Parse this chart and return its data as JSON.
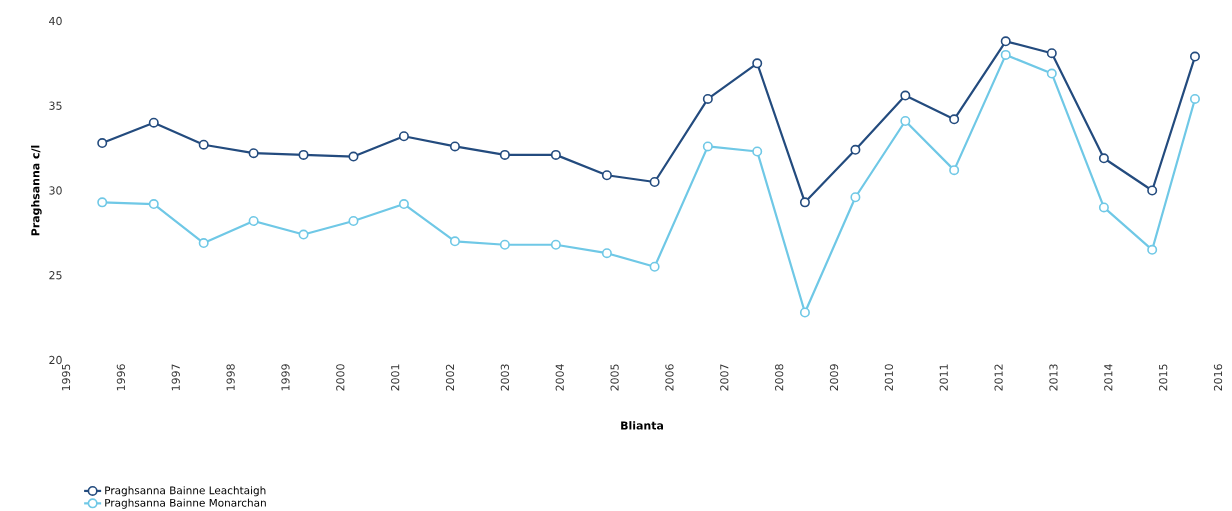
{
  "chart_data": {
    "type": "line",
    "xlabel": "Blianta",
    "ylabel": "Praghsanna c/l",
    "x": [
      1995.66,
      1996.6,
      1997.51,
      1998.42,
      1999.33,
      2000.24,
      2001.16,
      2002.09,
      2003.0,
      2003.93,
      2004.86,
      2005.73,
      2006.7,
      2007.6,
      2008.47,
      2009.39,
      2010.3,
      2011.19,
      2012.13,
      2012.97,
      2013.92,
      2014.8,
      2015.58
    ],
    "series": [
      {
        "name": "Praghsanna Bainne Leachtaigh",
        "color": "#234b7e",
        "values": [
          32.8,
          34.0,
          32.7,
          32.2,
          32.1,
          32.0,
          33.2,
          32.6,
          32.1,
          32.1,
          30.9,
          30.5,
          35.4,
          37.5,
          29.3,
          32.4,
          35.6,
          34.2,
          38.8,
          38.1,
          31.9,
          30.0,
          37.9
        ]
      },
      {
        "name": "Praghsanna Bainne Monarchan",
        "color": "#6fc8e6",
        "values": [
          29.3,
          29.2,
          26.9,
          28.2,
          27.4,
          28.2,
          29.2,
          27.0,
          26.8,
          26.8,
          26.3,
          25.5,
          32.6,
          32.3,
          22.8,
          29.6,
          34.1,
          31.2,
          38.0,
          36.9,
          29.0,
          26.5,
          35.4
        ]
      }
    ],
    "xlim": [
      1995,
      2016
    ],
    "xticks": [
      1995,
      1996,
      1997,
      1998,
      1999,
      2000,
      2001,
      2002,
      2003,
      2004,
      2005,
      2006,
      2007,
      2008,
      2009,
      2010,
      2011,
      2012,
      2013,
      2014,
      2015,
      2016
    ],
    "ylim": [
      20,
      40
    ],
    "yticks": [
      20,
      25,
      30,
      35,
      40
    ],
    "grid": false,
    "legend": "bottom left",
    "marker": "circle",
    "line_style": "solid"
  }
}
